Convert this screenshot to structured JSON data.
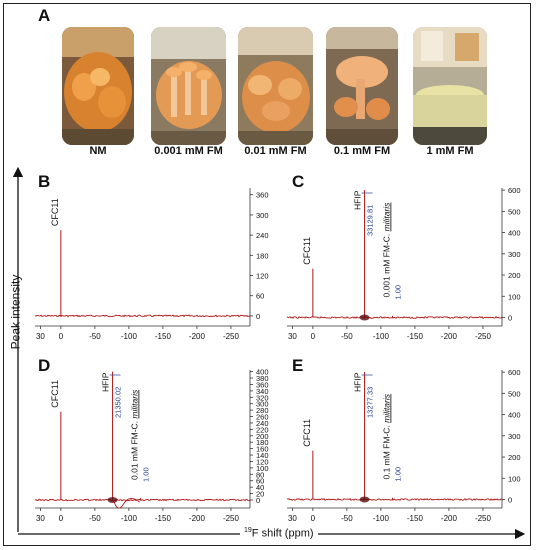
{
  "panel_a": {
    "letter": "A",
    "photos": [
      {
        "label": "NM"
      },
      {
        "label": "0.001 mM FM"
      },
      {
        "label": "0.01 mM FM"
      },
      {
        "label": "0.1 mM FM"
      },
      {
        "label": "1 mM FM"
      }
    ]
  },
  "axes": {
    "y_label": "Peak intensity",
    "x_label_sup": "19",
    "x_label": "F shift (ppm)"
  },
  "colors": {
    "spectrum": "#b01818",
    "annotation_blue": "#1f3f8f",
    "text": "#111111"
  },
  "chart_data": [
    {
      "type": "line",
      "panel": "B",
      "x_ticks": [
        30,
        0,
        -50,
        -100,
        -150,
        -200,
        -250
      ],
      "y_ticks": [
        0,
        60,
        120,
        180,
        240,
        300,
        360
      ],
      "xlim": [
        38,
        -278
      ],
      "ylim": [
        -30,
        380
      ],
      "peaks": [
        {
          "label": "CFC11",
          "x": 0,
          "height": 255
        }
      ]
    },
    {
      "type": "line",
      "panel": "C",
      "x_ticks": [
        30,
        0,
        -50,
        -100,
        -150,
        -200,
        -250
      ],
      "y_ticks": [
        0,
        100,
        200,
        300,
        400,
        500,
        600
      ],
      "xlim": [
        38,
        -278
      ],
      "ylim": [
        -40,
        610
      ],
      "peaks": [
        {
          "label": "CFC11",
          "x": 0,
          "height": 230
        },
        {
          "label": "HFIP",
          "x": -76,
          "height": 600,
          "integral": "33129.81"
        },
        {
          "label": "0.001 mM FM-C. militaris",
          "x": -117,
          "height": 8,
          "integral": "1.00"
        }
      ]
    },
    {
      "type": "line",
      "panel": "D",
      "x_ticks": [
        30,
        0,
        -50,
        -100,
        -150,
        -200,
        -250
      ],
      "y_ticks": [
        0,
        20,
        40,
        60,
        80,
        100,
        120,
        140,
        160,
        180,
        200,
        220,
        240,
        260,
        280,
        300,
        320,
        340,
        360,
        380,
        400
      ],
      "xlim": [
        38,
        -278
      ],
      "ylim": [
        -25,
        405
      ],
      "peaks": [
        {
          "label": "CFC11",
          "x": 0,
          "height": 275
        },
        {
          "label": "HFIP",
          "x": -76,
          "height": 400,
          "integral": "21350.02"
        },
        {
          "label": "0.01 mM FM-C. militaris",
          "x": -117,
          "height": 6,
          "integral": "1.00"
        }
      ]
    },
    {
      "type": "line",
      "panel": "E",
      "x_ticks": [
        30,
        0,
        -50,
        -100,
        -150,
        -200,
        -250
      ],
      "y_ticks": [
        0,
        100,
        200,
        300,
        400,
        500,
        600
      ],
      "xlim": [
        38,
        -278
      ],
      "ylim": [
        -40,
        610
      ],
      "peaks": [
        {
          "label": "CFC11",
          "x": 0,
          "height": 230
        },
        {
          "label": "HFIP",
          "x": -76,
          "height": 600,
          "integral": "13277.33"
        },
        {
          "label": "0.1 mM FM-C. militaris",
          "x": -117,
          "height": 8,
          "integral": "1.00"
        }
      ]
    }
  ]
}
